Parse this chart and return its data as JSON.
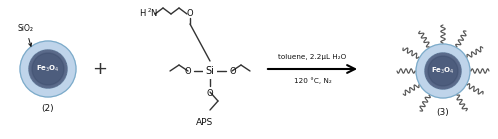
{
  "bg_color": "#ffffff",
  "sio2_shell_color": "#b8d0e8",
  "fe3o4_color": "#5a6a8a",
  "fe3o4_dark": "#3a4a6a",
  "reaction_text1": "toluene, 2.2μL H₂O",
  "reaction_text2": "120 °C, N₂",
  "label2": "(2)",
  "label3": "(3)",
  "aps_label": "APS",
  "sio2_label": "SiO₂",
  "fig_width": 4.98,
  "fig_height": 1.39,
  "dpi": 100
}
